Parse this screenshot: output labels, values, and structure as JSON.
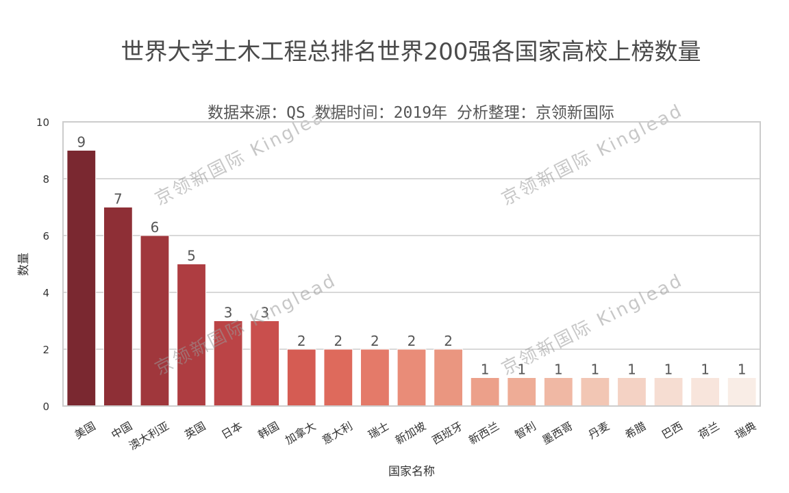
{
  "chart_data": {
    "type": "bar",
    "title": "世界大学土木工程总排名世界200强各国家高校上榜数量",
    "subtitle": "数据来源：QS 数据时间：2019年 分析整理：京领新国际",
    "xlabel": "国家名称",
    "ylabel": "数量",
    "ylim": [
      0,
      10
    ],
    "yticks": [
      0,
      2,
      4,
      6,
      8,
      10
    ],
    "grid": "horizontal",
    "categories": [
      "美国",
      "中国",
      "澳大利亚",
      "英国",
      "日本",
      "韩国",
      "加拿大",
      "意大利",
      "瑞士",
      "新加坡",
      "西班牙",
      "新西兰",
      "智利",
      "墨西哥",
      "丹麦",
      "希腊",
      "巴西",
      "荷兰",
      "瑞典"
    ],
    "values": [
      9,
      7,
      6,
      5,
      3,
      3,
      2,
      2,
      2,
      2,
      2,
      1,
      1,
      1,
      1,
      1,
      1,
      1,
      1
    ],
    "colors": [
      "#7a2830",
      "#8e2f36",
      "#a0373c",
      "#ae3d41",
      "#bb4446",
      "#c94f4d",
      "#d55c53",
      "#de6a5c",
      "#e47a69",
      "#e98c78",
      "#ea9680",
      "#eca08a",
      "#eeac96",
      "#f0b8a4",
      "#f2c6b4",
      "#f4d2c4",
      "#f6ddd2",
      "#f8e5dc",
      "#f9ede6"
    ],
    "watermark": "京领新国际 Kinglead"
  }
}
